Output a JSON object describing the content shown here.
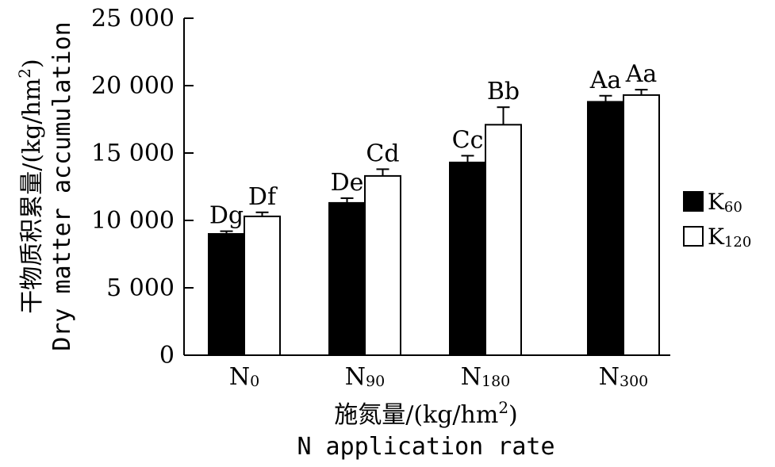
{
  "chart_data": {
    "type": "bar",
    "categories": [
      {
        "base": "N",
        "sub": "0"
      },
      {
        "base": "N",
        "sub": "90"
      },
      {
        "base": "N",
        "sub": "180"
      },
      {
        "base": "N",
        "sub": "300"
      }
    ],
    "series": [
      {
        "name_base": "K",
        "name_sub": "60",
        "fill": "#000000",
        "values": [
          9000,
          11300,
          14300,
          18800
        ],
        "errors": [
          200,
          350,
          500,
          450
        ],
        "labels": [
          "Dg",
          "De",
          "Cc",
          "Aa"
        ]
      },
      {
        "name_base": "K",
        "name_sub": "120",
        "fill": "#ffffff",
        "values": [
          10300,
          13300,
          17100,
          19300
        ],
        "errors": [
          300,
          500,
          1300,
          400
        ],
        "labels": [
          "Df",
          "Cd",
          "Bb",
          "Aa"
        ]
      }
    ],
    "y_ticks": [
      "0",
      "5 000",
      "10 000",
      "15 000",
      "20 000",
      "25 000"
    ],
    "y_tick_values": [
      0,
      5000,
      10000,
      15000,
      20000,
      25000
    ],
    "ylim": [
      0,
      25000
    ],
    "ylabel_cn": "干物质积累量/(kg/hm",
    "ylabel_sup": "2",
    "ylabel_close": ")",
    "ylabel_en": "Dry matter accumulation",
    "xlabel_cn": "施氮量/(kg/hm",
    "xlabel_sup": "2",
    "xlabel_close": ")",
    "xlabel_en": "N application rate",
    "legend_position": "right"
  }
}
